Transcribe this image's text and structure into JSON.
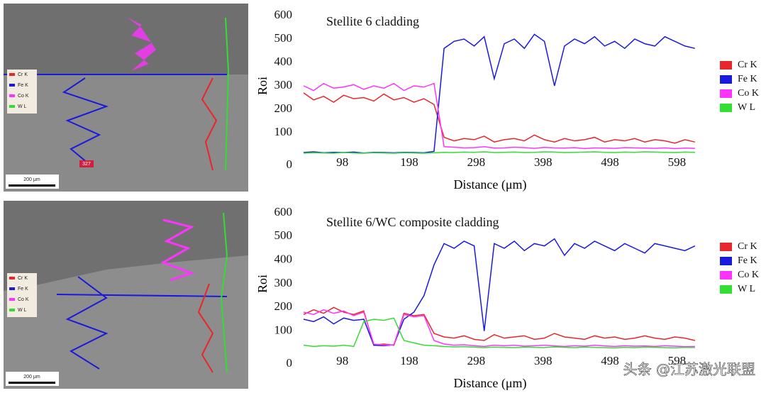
{
  "chart_data": [
    {
      "type": "line",
      "title": "Stellite 6 cladding",
      "x_label": "Distance (μm)",
      "y_label": "Roi",
      "xlim": [
        40,
        640
      ],
      "xticks": [
        98,
        198,
        298,
        398,
        498,
        598
      ],
      "ylim": [
        0,
        600
      ],
      "yticks": [
        0,
        100,
        200,
        300,
        400,
        500,
        600
      ],
      "x": [
        40,
        55,
        70,
        85,
        100,
        115,
        130,
        145,
        160,
        175,
        190,
        205,
        220,
        235,
        250,
        265,
        280,
        295,
        310,
        325,
        340,
        355,
        370,
        385,
        400,
        415,
        430,
        445,
        460,
        475,
        490,
        505,
        520,
        535,
        550,
        565,
        580,
        595,
        610,
        625
      ],
      "series": [
        {
          "name": "Cr K",
          "color": "#e8262b",
          "values": [
            270,
            240,
            255,
            230,
            260,
            245,
            250,
            235,
            265,
            240,
            250,
            230,
            245,
            220,
            80,
            65,
            75,
            70,
            85,
            60,
            70,
            75,
            65,
            90,
            70,
            60,
            75,
            65,
            70,
            80,
            60,
            70,
            65,
            75,
            60,
            70,
            65,
            55,
            70,
            60
          ]
        },
        {
          "name": "Fe K",
          "color": "#1a1adc",
          "values": [
            15,
            18,
            14,
            16,
            15,
            17,
            13,
            16,
            15,
            14,
            16,
            15,
            14,
            20,
            460,
            490,
            500,
            470,
            510,
            330,
            480,
            500,
            460,
            520,
            490,
            300,
            470,
            500,
            480,
            510,
            470,
            490,
            460,
            500,
            480,
            470,
            510,
            490,
            470,
            460
          ]
        },
        {
          "name": "Co K",
          "color": "#ff33ff",
          "values": [
            300,
            280,
            310,
            290,
            295,
            305,
            285,
            300,
            290,
            310,
            280,
            300,
            295,
            310,
            40,
            38,
            35,
            36,
            40,
            34,
            35,
            38,
            36,
            33,
            37,
            35,
            34,
            36,
            32,
            35,
            34,
            33,
            36,
            35,
            34,
            33,
            35,
            32,
            34,
            33
          ]
        },
        {
          "name": "W L",
          "color": "#33dd33",
          "values": [
            12,
            14,
            13,
            12,
            15,
            13,
            12,
            14,
            13,
            12,
            14,
            13,
            12,
            14,
            16,
            15,
            17,
            16,
            18,
            15,
            16,
            17,
            15,
            16,
            18,
            17,
            15,
            16,
            17,
            18,
            16,
            15,
            17,
            16,
            18,
            17,
            16,
            15,
            17,
            16
          ]
        }
      ]
    },
    {
      "type": "line",
      "title": "Stellite 6/WC composite cladding",
      "x_label": "Distance (μm)",
      "y_label": "Roi",
      "xlim": [
        40,
        640
      ],
      "xticks": [
        98,
        198,
        298,
        398,
        498,
        598
      ],
      "ylim": [
        0,
        600
      ],
      "yticks": [
        0,
        100,
        200,
        300,
        400,
        500,
        600
      ],
      "x": [
        40,
        55,
        70,
        85,
        100,
        115,
        130,
        145,
        160,
        175,
        190,
        205,
        220,
        235,
        250,
        265,
        280,
        295,
        310,
        325,
        340,
        355,
        370,
        385,
        400,
        415,
        430,
        445,
        460,
        475,
        490,
        505,
        520,
        535,
        550,
        565,
        580,
        595,
        610,
        625
      ],
      "series": [
        {
          "name": "Cr K",
          "color": "#e8262b",
          "values": [
            170,
            190,
            175,
            200,
            180,
            170,
            185,
            40,
            45,
            40,
            175,
            165,
            170,
            90,
            75,
            70,
            80,
            65,
            60,
            85,
            70,
            75,
            80,
            65,
            70,
            90,
            75,
            70,
            65,
            80,
            70,
            75,
            65,
            70,
            80,
            70,
            65,
            75,
            70,
            60
          ]
        },
        {
          "name": "Fe K",
          "color": "#1a1adc",
          "values": [
            150,
            140,
            160,
            130,
            155,
            145,
            150,
            40,
            38,
            42,
            150,
            180,
            250,
            380,
            470,
            450,
            480,
            460,
            100,
            470,
            450,
            480,
            440,
            470,
            460,
            490,
            420,
            470,
            450,
            480,
            460,
            440,
            470,
            450,
            430,
            470,
            460,
            450,
            440,
            460
          ]
        },
        {
          "name": "Co K",
          "color": "#ff33ff",
          "values": [
            180,
            170,
            190,
            175,
            185,
            165,
            180,
            45,
            40,
            42,
            170,
            160,
            165,
            60,
            45,
            40,
            42,
            38,
            35,
            40,
            38,
            40,
            36,
            38,
            40,
            37,
            35,
            38,
            36,
            40,
            37,
            35,
            38,
            36,
            37,
            35,
            38,
            36,
            34,
            35
          ]
        },
        {
          "name": "W L",
          "color": "#33dd33",
          "values": [
            40,
            35,
            38,
            36,
            40,
            35,
            140,
            150,
            145,
            155,
            60,
            50,
            40,
            38,
            35,
            33,
            34,
            32,
            30,
            32,
            31,
            30,
            32,
            31,
            30,
            33,
            31,
            30,
            32,
            31,
            30,
            29,
            31,
            30,
            32,
            31,
            30,
            29,
            31,
            30
          ]
        }
      ]
    }
  ],
  "sem_images": [
    {
      "legend": [
        "Cr K",
        "Fe K",
        "Co K",
        "W L"
      ],
      "scale_bar": "200 μm",
      "marker": "327"
    },
    {
      "legend": [
        "Cr K",
        "Fe K",
        "Co K",
        "W L"
      ],
      "scale_bar": "200 μm"
    }
  ],
  "watermark": "头条 @江苏激光联盟"
}
